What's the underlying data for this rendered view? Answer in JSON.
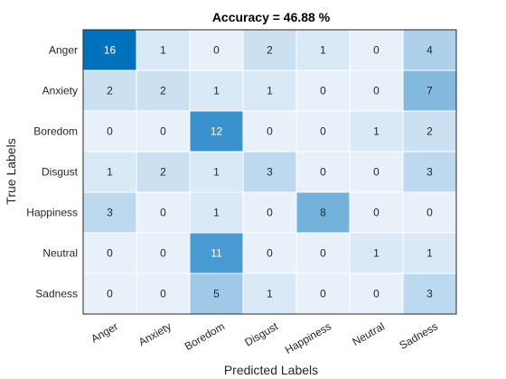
{
  "chart_data": {
    "type": "heatmap",
    "title": "Accuracy = 46.88 %",
    "xlabel": "Predicted Labels",
    "ylabel": "True Labels",
    "x_categories": [
      "Anger",
      "Anxiety",
      "Boredom",
      "Disgust",
      "Happiness",
      "Neutral",
      "Sadness"
    ],
    "y_categories": [
      "Anger",
      "Anxiety",
      "Boredom",
      "Disgust",
      "Happiness",
      "Neutral",
      "Sadness"
    ],
    "values": [
      [
        16,
        1,
        0,
        2,
        1,
        0,
        4
      ],
      [
        2,
        2,
        1,
        1,
        0,
        0,
        7
      ],
      [
        0,
        0,
        12,
        0,
        0,
        1,
        2
      ],
      [
        1,
        2,
        1,
        3,
        0,
        0,
        3
      ],
      [
        3,
        0,
        1,
        0,
        8,
        0,
        0
      ],
      [
        0,
        0,
        11,
        0,
        0,
        1,
        1
      ],
      [
        0,
        0,
        5,
        1,
        0,
        0,
        3
      ]
    ],
    "color_low": "#e8f1fa",
    "color_high": "#0072bd",
    "text_dark_color": "#262626",
    "text_light_color": "#ffffff",
    "grid": true,
    "legend": "none"
  }
}
